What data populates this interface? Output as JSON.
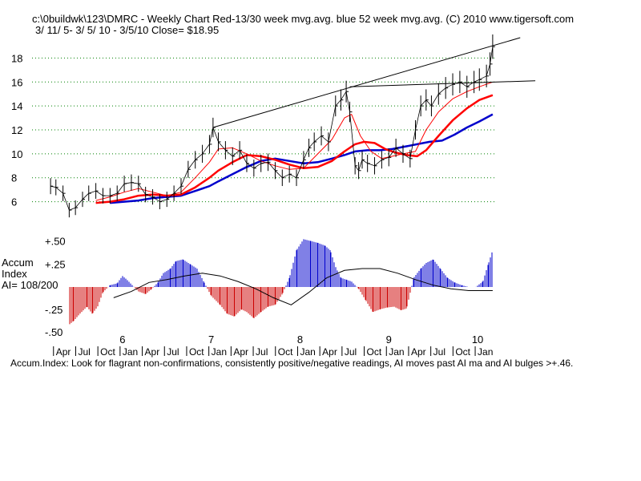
{
  "header": {
    "line1": "c:\\0buildwk\\123\\DMRC  - Weekly Chart  Red-13/30 week mvg.avg.  blue 52 week mvg.avg.  (C) 2010 www.tigersoft.com",
    "line2": "3/ 11/ 5- 3/ 5/ 10 - 3/5/10    Close= $18.95"
  },
  "accum_label": {
    "line1": "Accum",
    "line2": "Index",
    "line3": "AI= 108/200"
  },
  "footer": "Accum.Index: Look for flagrant non-confirmations, consistently positive/negative readings, AI moves past AI ma and AI bulges >+.46.",
  "colors": {
    "ma13": "#ff0000",
    "ma30": "#ff0000",
    "ma52": "#0000cc",
    "pos": "#0000cc",
    "neg": "#cc0000",
    "grid": "#008000"
  },
  "chart_data": [
    {
      "type": "line",
      "title": "DMRC Weekly Chart",
      "y_ticks": [
        "18",
        "16",
        "14",
        "12",
        "10",
        "8",
        "6"
      ],
      "y_tick_values": [
        18,
        16,
        14,
        12,
        10,
        8,
        6
      ],
      "ylim": [
        4.5,
        19.5
      ],
      "grid": true,
      "year_labels": [
        "6",
        "7",
        "8",
        "9",
        "10"
      ],
      "year_label_x": [
        2006.0,
        2007.0,
        2008.0,
        2009.0,
        2010.0
      ],
      "month_labels": [
        "Apr",
        "Jul",
        "Oct",
        "Jan",
        "Apr",
        "Jul",
        "Oct",
        "Jan",
        "Apr",
        "Jul",
        "Oct",
        "Jan",
        "Apr",
        "Jul",
        "Oct",
        "Jan",
        "Apr",
        "Jul",
        "Oct",
        "Jan"
      ],
      "x_range": [
        2005.18,
        2010.18
      ],
      "series": [
        {
          "name": "price",
          "x": [
            2005.19,
            2005.25,
            2005.33,
            2005.4,
            2005.47,
            2005.55,
            2005.62,
            2005.7,
            2005.78,
            2005.86,
            2005.94,
            2006.02,
            2006.1,
            2006.18,
            2006.26,
            2006.34,
            2006.42,
            2006.5,
            2006.58,
            2006.66,
            2006.74,
            2006.82,
            2006.9,
            2006.98,
            2007.02,
            2007.08,
            2007.16,
            2007.24,
            2007.32,
            2007.4,
            2007.48,
            2007.56,
            2007.64,
            2007.72,
            2007.8,
            2007.88,
            2007.96,
            2008.04,
            2008.1,
            2008.16,
            2008.24,
            2008.32,
            2008.4,
            2008.46,
            2008.52,
            2008.56,
            2008.62,
            2008.66,
            2008.7,
            2008.76,
            2008.84,
            2008.92,
            2009.0,
            2009.08,
            2009.16,
            2009.24,
            2009.3,
            2009.36,
            2009.42,
            2009.48,
            2009.56,
            2009.64,
            2009.72,
            2009.8,
            2009.88,
            2009.96,
            2010.02,
            2010.1,
            2010.14,
            2010.17
          ],
          "y": [
            7.3,
            7.2,
            6.7,
            5.3,
            5.5,
            6.2,
            6.7,
            6.9,
            6.5,
            6.5,
            6.7,
            7.5,
            7.6,
            7.5,
            6.6,
            6.4,
            6.0,
            6.2,
            6.7,
            7.3,
            8.7,
            9.5,
            10.0,
            10.8,
            12.2,
            11.0,
            10.3,
            9.8,
            10.3,
            9.2,
            8.8,
            9.2,
            9.3,
            8.6,
            8.0,
            8.3,
            8.0,
            9.5,
            10.5,
            11.0,
            11.5,
            11.0,
            14.0,
            14.5,
            15.2,
            13.5,
            9.0,
            8.6,
            9.5,
            9.2,
            9.0,
            9.5,
            9.7,
            10.5,
            10.0,
            9.6,
            12.0,
            14.0,
            14.5,
            14.0,
            15.0,
            15.5,
            15.8,
            16.0,
            15.6,
            16.0,
            16.2,
            16.5,
            17.5,
            18.95
          ]
        },
        {
          "name": "13 week mvg.avg.",
          "x": [
            2005.7,
            2005.86,
            2006.02,
            2006.18,
            2006.34,
            2006.5,
            2006.66,
            2006.82,
            2006.98,
            2007.08,
            2007.24,
            2007.4,
            2007.56,
            2007.72,
            2007.88,
            2008.04,
            2008.2,
            2008.36,
            2008.5,
            2008.58,
            2008.68,
            2008.8,
            2008.92,
            2009.04,
            2009.16,
            2009.3,
            2009.42,
            2009.56,
            2009.72,
            2009.88,
            2010.02,
            2010.17
          ],
          "y": [
            6.1,
            6.4,
            6.8,
            7.1,
            6.8,
            6.5,
            6.8,
            8.0,
            9.3,
            10.4,
            10.5,
            10.0,
            9.4,
            9.0,
            8.7,
            8.8,
            10.0,
            11.2,
            13.0,
            13.3,
            11.5,
            10.2,
            9.6,
            9.8,
            10.0,
            10.2,
            12.0,
            13.5,
            14.6,
            15.2,
            15.6,
            16.0
          ]
        },
        {
          "name": "30 week mvg.avg.",
          "x": [
            2005.7,
            2005.86,
            2006.02,
            2006.18,
            2006.34,
            2006.5,
            2006.66,
            2006.82,
            2006.98,
            2007.08,
            2007.24,
            2007.4,
            2007.56,
            2007.72,
            2007.88,
            2008.04,
            2008.2,
            2008.36,
            2008.5,
            2008.62,
            2008.72,
            2008.84,
            2008.96,
            2009.08,
            2009.2,
            2009.32,
            2009.42,
            2009.56,
            2009.72,
            2009.88,
            2010.02,
            2010.17
          ],
          "y": [
            5.9,
            6.0,
            6.2,
            6.5,
            6.6,
            6.5,
            6.6,
            7.2,
            8.0,
            8.6,
            9.3,
            9.9,
            9.8,
            9.5,
            9.1,
            8.8,
            8.9,
            9.4,
            10.2,
            10.8,
            11.0,
            10.9,
            10.4,
            10.1,
            9.9,
            9.8,
            10.3,
            11.5,
            12.8,
            13.8,
            14.5,
            14.9
          ]
        },
        {
          "name": "52 week mvg.avg.",
          "x": [
            2005.86,
            2006.02,
            2006.18,
            2006.34,
            2006.5,
            2006.66,
            2006.82,
            2006.98,
            2007.08,
            2007.24,
            2007.4,
            2007.56,
            2007.72,
            2007.88,
            2008.04,
            2008.2,
            2008.36,
            2008.5,
            2008.62,
            2008.76,
            2008.9,
            2009.04,
            2009.18,
            2009.32,
            2009.46,
            2009.6,
            2009.74,
            2009.88,
            2010.02,
            2010.17
          ],
          "y": [
            5.9,
            6.0,
            6.1,
            6.3,
            6.4,
            6.5,
            6.9,
            7.3,
            7.7,
            8.3,
            8.9,
            9.4,
            9.6,
            9.4,
            9.2,
            9.3,
            9.6,
            9.9,
            10.2,
            10.3,
            10.3,
            10.4,
            10.6,
            10.8,
            11.0,
            11.1,
            11.6,
            12.2,
            12.7,
            13.3
          ]
        }
      ],
      "trendlines": [
        {
          "x": [
            2007.02,
            2010.48
          ],
          "y": [
            12.2,
            19.7
          ]
        },
        {
          "x": [
            2008.56,
            2010.65
          ],
          "y": [
            15.6,
            16.1
          ]
        }
      ]
    },
    {
      "type": "bar",
      "title": "Accum. Index",
      "y_ticks": [
        "+.50",
        "+.25",
        "-.25",
        "-.50"
      ],
      "y_tick_values": [
        0.5,
        0.25,
        -0.25,
        -0.5
      ],
      "ylim": [
        -0.52,
        0.54
      ],
      "grid": false,
      "series": [
        {
          "name": "Accum. Index",
          "x": [
            2005.4,
            2005.45,
            2005.52,
            2005.6,
            2005.66,
            2005.72,
            2005.78,
            2005.86,
            2005.94,
            2006.0,
            2006.05,
            2006.12,
            2006.18,
            2006.26,
            2006.32,
            2006.4,
            2006.46,
            2006.54,
            2006.6,
            2006.68,
            2006.76,
            2006.84,
            2006.92,
            2007.0,
            2007.1,
            2007.18,
            2007.26,
            2007.34,
            2007.4,
            2007.48,
            2007.56,
            2007.64,
            2007.72,
            2007.8,
            2007.88,
            2007.96,
            2008.04,
            2008.12,
            2008.2,
            2008.28,
            2008.34,
            2008.4,
            2008.46,
            2008.52,
            2008.58,
            2008.66,
            2008.74,
            2008.82,
            2008.9,
            2008.98,
            2009.06,
            2009.14,
            2009.2,
            2009.28,
            2009.36,
            2009.42,
            2009.5,
            2009.58,
            2009.66,
            2009.74,
            2009.82,
            2009.9,
            2009.98,
            2010.06,
            2010.12,
            2010.17
          ],
          "y": [
            -0.42,
            -0.38,
            -0.3,
            -0.22,
            -0.3,
            -0.22,
            -0.06,
            0.02,
            0.04,
            0.12,
            0.08,
            0.01,
            -0.05,
            -0.08,
            -0.03,
            0.05,
            0.15,
            0.2,
            0.28,
            0.3,
            0.25,
            0.2,
            0.05,
            -0.1,
            -0.2,
            -0.3,
            -0.33,
            -0.25,
            -0.28,
            -0.35,
            -0.28,
            -0.22,
            -0.2,
            -0.08,
            0.1,
            0.4,
            0.52,
            0.5,
            0.48,
            0.45,
            0.4,
            0.22,
            0.1,
            0.08,
            0.06,
            -0.02,
            -0.15,
            -0.28,
            -0.25,
            -0.23,
            -0.22,
            -0.26,
            -0.24,
            0.1,
            0.2,
            0.26,
            0.3,
            0.2,
            0.1,
            0.05,
            0.02,
            0.0,
            0.0,
            0.06,
            0.25,
            0.4
          ]
        },
        {
          "name": "AI ma",
          "x": [
            2005.9,
            2006.1,
            2006.3,
            2006.5,
            2006.7,
            2006.9,
            2007.1,
            2007.3,
            2007.5,
            2007.7,
            2007.9,
            2008.1,
            2008.3,
            2008.5,
            2008.7,
            2008.9,
            2009.1,
            2009.3,
            2009.5,
            2009.7,
            2009.9,
            2010.17
          ],
          "y": [
            -0.12,
            -0.05,
            0.05,
            0.08,
            0.12,
            0.15,
            0.12,
            0.06,
            -0.02,
            -0.12,
            -0.2,
            -0.06,
            0.1,
            0.18,
            0.2,
            0.2,
            0.15,
            0.08,
            0.02,
            -0.02,
            -0.04,
            -0.04
          ]
        }
      ]
    }
  ]
}
